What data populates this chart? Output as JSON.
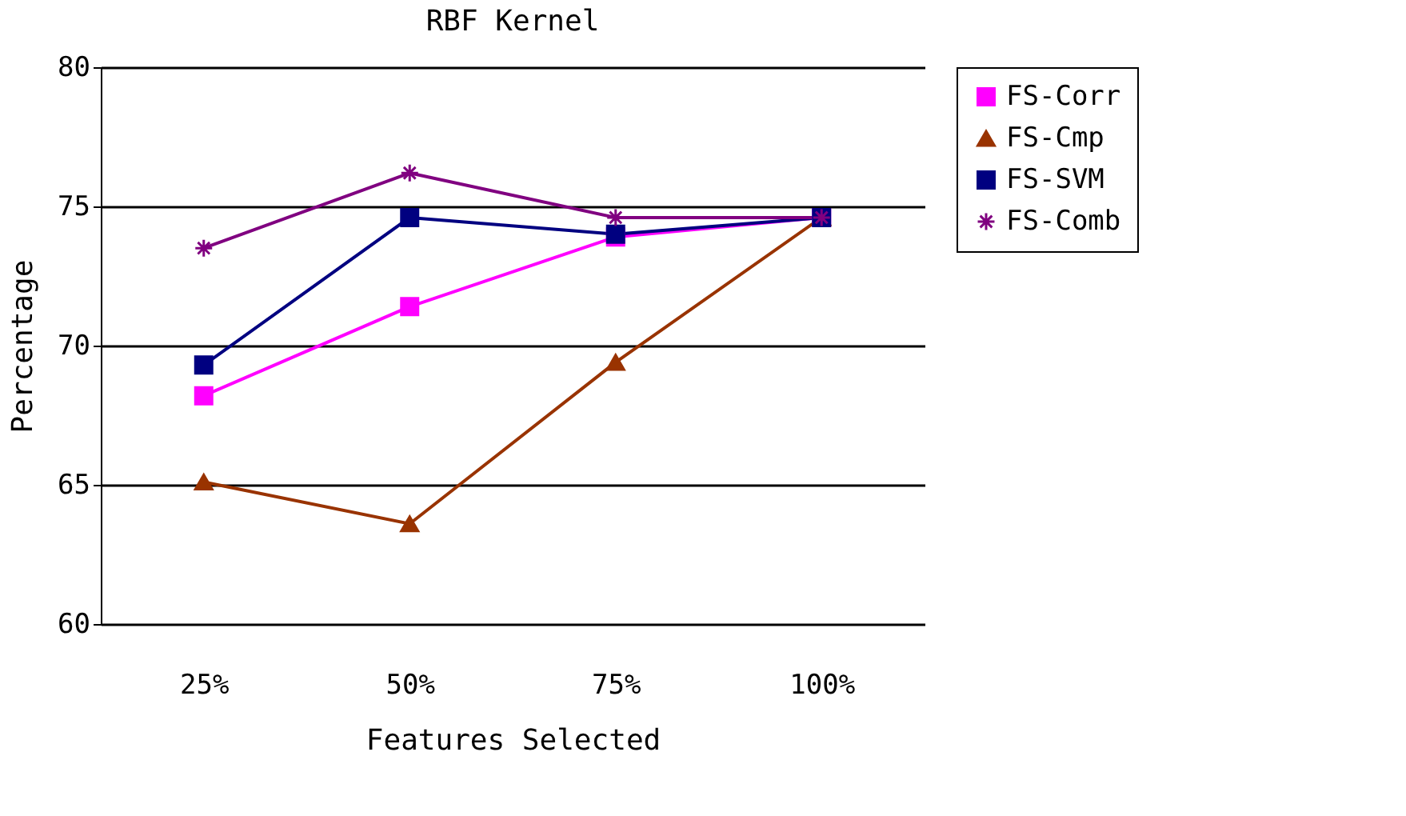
{
  "chart_data": {
    "type": "line",
    "title": "RBF Kernel",
    "xlabel": "Features Selected",
    "ylabel": "Percentage",
    "categories": [
      "25%",
      "50%",
      "75%",
      "100%"
    ],
    "ylim": [
      60,
      80
    ],
    "yticks": [
      60,
      65,
      70,
      75,
      80
    ],
    "grid": "y",
    "legend": "right",
    "series": [
      {
        "name": "FS-Corr",
        "color": "#ff00ff",
        "marker": "square",
        "values": [
          68.2,
          71.4,
          73.9,
          74.6
        ]
      },
      {
        "name": "FS-Cmp",
        "color": "#993300",
        "marker": "triangle",
        "values": [
          65.1,
          63.6,
          69.4,
          74.6
        ]
      },
      {
        "name": "FS-SVM",
        "color": "#000080",
        "marker": "square",
        "values": [
          69.3,
          74.6,
          74.0,
          74.6
        ]
      },
      {
        "name": "FS-Comb",
        "color": "#800080",
        "marker": "cross",
        "values": [
          73.5,
          76.2,
          74.6,
          74.6
        ]
      }
    ]
  }
}
